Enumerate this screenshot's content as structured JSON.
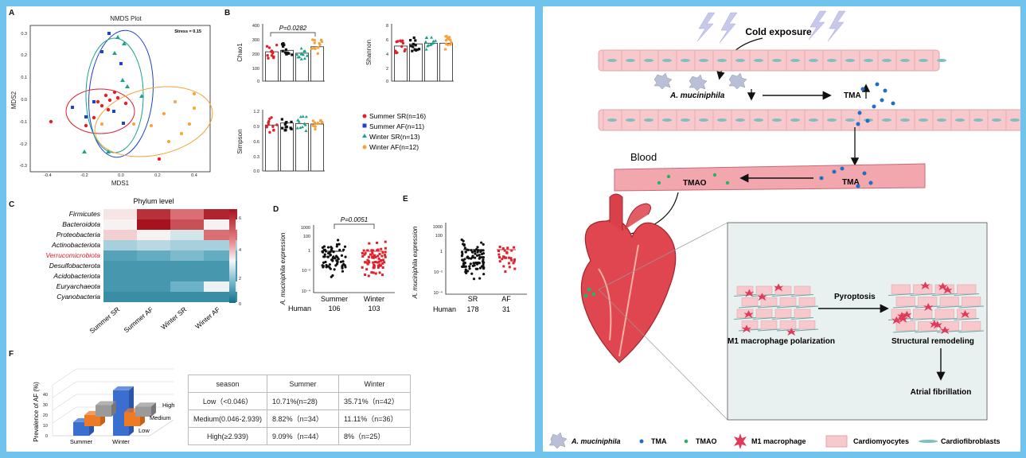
{
  "panel_a": {
    "letter": "A",
    "title": "NMDS Plot",
    "stress": "Stress = 0.15",
    "xlabel": "MDS1",
    "ylabel": "MDS2",
    "xticks": [
      "-0.4",
      "-0.2",
      "0.0",
      "0.2",
      "0.4"
    ],
    "yticks": [
      "0.3",
      "0.2",
      "0.1",
      "0.0",
      "-0.1",
      "-0.2",
      "-0.3"
    ]
  },
  "panel_b": {
    "letter": "B",
    "pvalue": "P=0.0282",
    "chao1": {
      "ylabel": "Chao1",
      "yticks": [
        "400",
        "300",
        "200",
        "100",
        "0"
      ]
    },
    "shannon": {
      "ylabel": "Shannon",
      "yticks": [
        "8",
        "6",
        "4",
        "2",
        "0"
      ]
    },
    "simpson": {
      "ylabel": "Simpson",
      "yticks": [
        "1.2",
        "0.9",
        "0.6",
        "0.3",
        "0.0"
      ]
    },
    "legend": [
      "Summer SR(n=16)",
      "Summer AF(n=11)",
      "Winter SR(n=13)",
      "Winter AF(n=12)"
    ]
  },
  "panel_c": {
    "letter": "C",
    "title": "Phylum level",
    "rows": [
      "Firmicutes",
      "Bacteroidota",
      "Proteobacteria",
      "Actinobacteriota",
      "Verrucomicrobiota",
      "Desulfobacterota",
      "Acidobacteriota",
      "Euryarchaeota",
      "Cyanobacteria"
    ],
    "cols": [
      "Summer SR",
      "Summer AF",
      "Winter SR",
      "Winter AF"
    ],
    "scale": [
      "6",
      "4",
      "2",
      "0"
    ]
  },
  "panel_d": {
    "letter": "D",
    "pvalue": "P=0.0051",
    "ylabel": "A. muciniphila expression",
    "yticks": [
      "1000",
      "100",
      "1",
      "10⁻²",
      "10⁻⁴"
    ],
    "groups": [
      "Summer",
      "Winter"
    ],
    "human_label": "Human",
    "counts": [
      "106",
      "103"
    ]
  },
  "panel_e": {
    "letter": "E",
    "ylabel": "A. muciniphila expression",
    "yticks": [
      "1000",
      "100",
      "1",
      "10⁻²",
      "10⁻⁴"
    ],
    "groups": [
      "SR",
      "AF"
    ],
    "human_label": "Human",
    "counts": [
      "178",
      "31"
    ]
  },
  "panel_f": {
    "letter": "F",
    "ylabel": "Prevalence of AF (%)",
    "zticks": [
      "40",
      "30",
      "20",
      "10",
      "0"
    ],
    "xcats": [
      "Summer",
      "Winter"
    ],
    "levels": [
      "High",
      "Medium",
      "Low"
    ]
  },
  "table": {
    "header": [
      "season",
      "Summer",
      "Winter"
    ],
    "rows": [
      [
        "Low（<0.046）",
        "10.71%(n=28)",
        "35.71%（n=42）"
      ],
      [
        "Medium(0.046-2.939)",
        "8.82%（n=34）",
        "11.11%（n=36）"
      ],
      [
        "High(≥2.939)",
        "9.09%（n=44）",
        "8%（n=25）"
      ]
    ]
  },
  "diagram": {
    "cold": "Cold exposure",
    "akk": "A. muciniphila",
    "tma": "TMA",
    "tma2": "TMA",
    "tmao": "TMAO",
    "blood": "Blood",
    "pyroptosis": "Pyroptosis",
    "m1": "M1 macrophage polarization",
    "remodel": "Structural remodeling",
    "af": "Atrial fibrillation"
  },
  "legend_bottom": [
    "A. muciniphila",
    "TMA",
    "TMAO",
    "M1 macrophage",
    "Cardiomyocytes",
    "Cardiofibroblasts"
  ],
  "chart_data": [
    {
      "type": "bar",
      "title": "Chao1",
      "categories": [
        "Summer SR",
        "Summer AF",
        "Winter SR",
        "Winter AF"
      ],
      "values": [
        205,
        215,
        195,
        240
      ],
      "ylim": [
        0,
        400
      ]
    },
    {
      "type": "bar",
      "title": "Shannon",
      "categories": [
        "Summer SR",
        "Summer AF",
        "Winter SR",
        "Winter AF"
      ],
      "values": [
        4.9,
        5.2,
        5.3,
        5.3
      ],
      "ylim": [
        0,
        8
      ]
    },
    {
      "type": "bar",
      "title": "Simpson",
      "categories": [
        "Summer SR",
        "Summer AF",
        "Winter SR",
        "Winter AF"
      ],
      "values": [
        0.9,
        0.94,
        0.93,
        0.92
      ],
      "ylim": [
        0,
        1.2
      ]
    },
    {
      "type": "heatmap",
      "rows": [
        "Firmicutes",
        "Bacteroidota",
        "Proteobacteria",
        "Actinobacteriota",
        "Verrucomicrobiota",
        "Desulfobacterota",
        "Acidobacteriota",
        "Euryarchaeota",
        "Cyanobacteria"
      ],
      "cols": [
        "Summer SR",
        "Summer AF",
        "Winter SR",
        "Winter AF"
      ],
      "values": [
        [
          3.2,
          6.0,
          5.0,
          6.2
        ],
        [
          3.0,
          6.5,
          5.5,
          3.0
        ],
        [
          3.5,
          3.0,
          2.5,
          5.0
        ],
        [
          2.0,
          2.2,
          2.0,
          2.0
        ],
        [
          1.0,
          1.2,
          1.5,
          1.2
        ],
        [
          0.8,
          0.8,
          0.8,
          0.8
        ],
        [
          0.8,
          0.8,
          0.8,
          0.8
        ],
        [
          0.8,
          0.8,
          1.3,
          2.8
        ],
        [
          0.6,
          0.6,
          0.6,
          0.6
        ]
      ]
    },
    {
      "type": "bar",
      "title": "Prevalence of AF (%)",
      "categories": [
        "Low",
        "Medium",
        "High"
      ],
      "series": [
        {
          "name": "Summer",
          "values": [
            10.71,
            8.82,
            9.09
          ]
        },
        {
          "name": "Winter",
          "values": [
            35.71,
            11.11,
            8
          ]
        }
      ],
      "ylim": [
        0,
        40
      ]
    }
  ]
}
